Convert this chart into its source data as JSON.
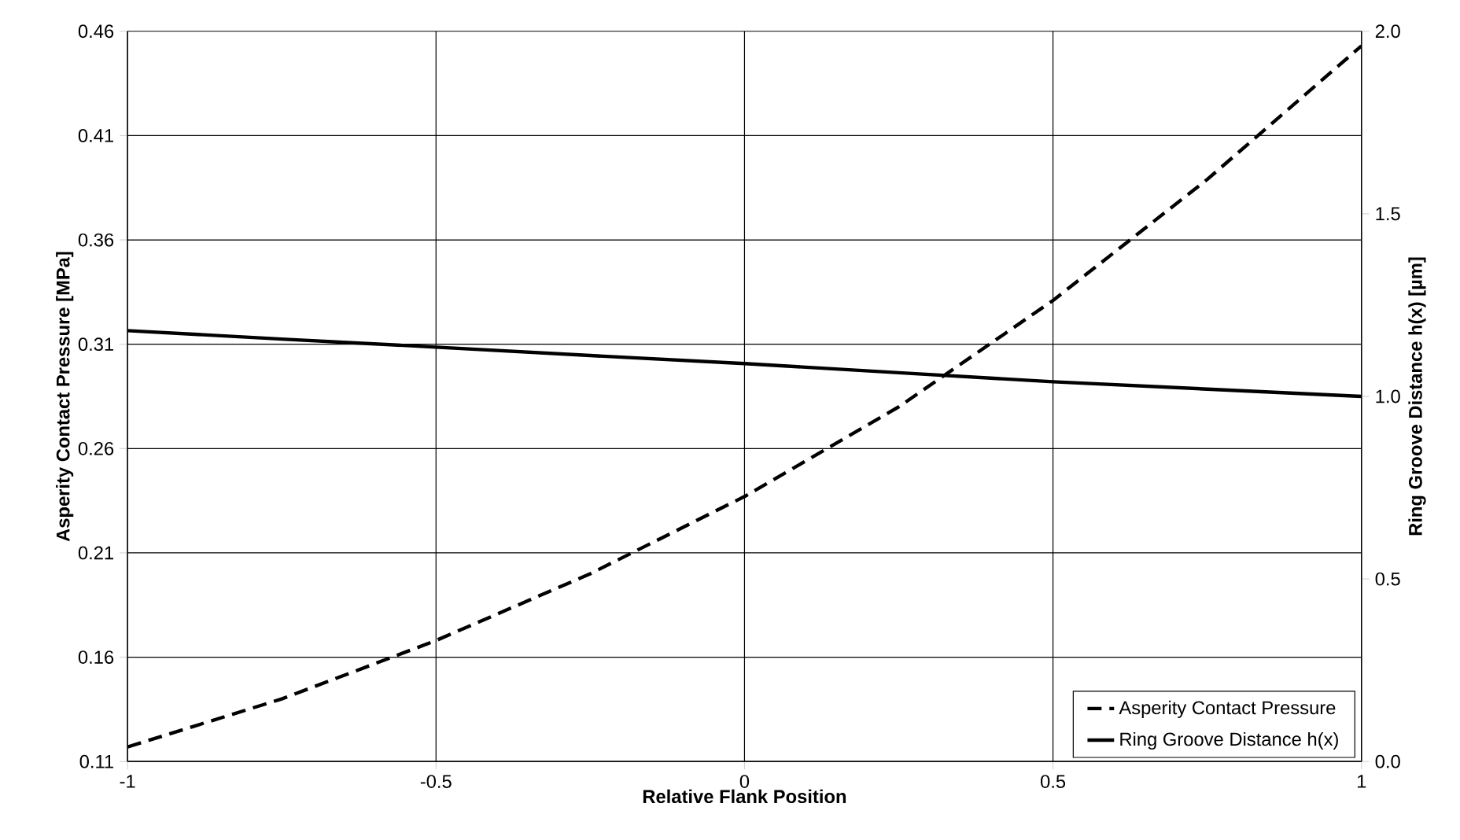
{
  "chart_data": {
    "type": "line",
    "xlabel": "Relative Flank Position",
    "ylabel": "Asperity Contact Pressure [MPa]",
    "y2label": "Ring Groove Distance h(x) [µm]",
    "x": [
      -1,
      -0.75,
      -0.5,
      -0.25,
      0,
      0.25,
      0.5,
      0.75,
      1
    ],
    "series": [
      {
        "name": "Asperity Contact Pressure",
        "color": "#000000",
        "line_style": "dashed",
        "values": [
          0.117,
          0.14,
          0.168,
          0.2,
          0.237,
          0.28,
          0.331,
          0.389,
          0.453
        ]
      },
      {
        "name": "Ring Groove Distance h(x)",
        "color": "#000000",
        "line_style": "solid",
        "axis": "y2",
        "values": [
          1.18,
          1.157,
          1.135,
          1.112,
          1.09,
          1.065,
          1.04,
          1.02,
          1.0
        ]
      }
    ],
    "xlim": [
      -1,
      1
    ],
    "xticks": [
      -1,
      -0.5,
      0,
      0.5,
      1
    ],
    "ylim": [
      0.11,
      0.46
    ],
    "yticks": [
      0.11,
      0.16,
      0.21,
      0.26,
      0.31,
      0.36,
      0.41,
      0.46
    ],
    "y2lim": [
      0,
      2
    ],
    "y2ticks": [
      {
        "value": 0,
        "label": "0.0"
      },
      {
        "value": 0.5,
        "label": "0.5"
      },
      {
        "value": 1,
        "label": "1.0"
      },
      {
        "value": 1.5,
        "label": "1.5"
      },
      {
        "value": 2,
        "label": "2.0"
      }
    ],
    "grid": true,
    "legend": "bottom right",
    "marker": "none"
  }
}
